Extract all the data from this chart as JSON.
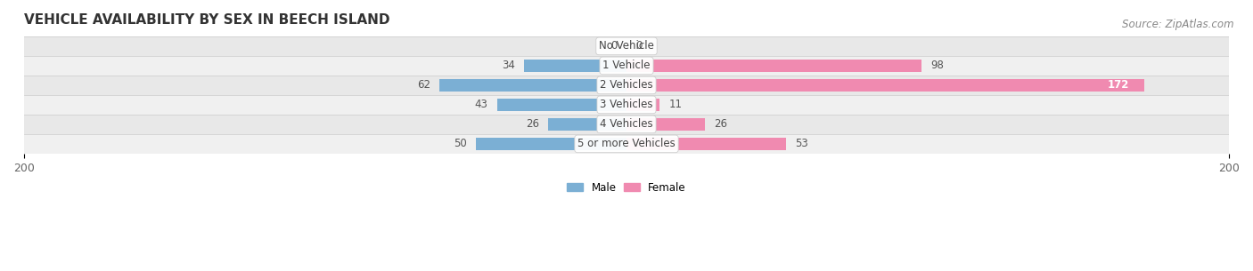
{
  "title": "VEHICLE AVAILABILITY BY SEX IN BEECH ISLAND",
  "source": "Source: ZipAtlas.com",
  "categories": [
    "No Vehicle",
    "1 Vehicle",
    "2 Vehicles",
    "3 Vehicles",
    "4 Vehicles",
    "5 or more Vehicles"
  ],
  "male_values": [
    0,
    34,
    62,
    43,
    26,
    50
  ],
  "female_values": [
    0,
    98,
    172,
    11,
    26,
    53
  ],
  "male_color": "#7bafd4",
  "female_color": "#f08ab0",
  "female_color_dark": "#e8457a",
  "row_colors": [
    "#f7f7f7",
    "#eeeeee",
    "#f7f7f7",
    "#eeeeee",
    "#f7f7f7",
    "#eeeeee"
  ],
  "axis_max": 200,
  "title_fontsize": 11,
  "source_fontsize": 8.5,
  "tick_fontsize": 9,
  "label_fontsize": 8.5,
  "value_fontsize": 8.5,
  "bg_color": "#ffffff"
}
